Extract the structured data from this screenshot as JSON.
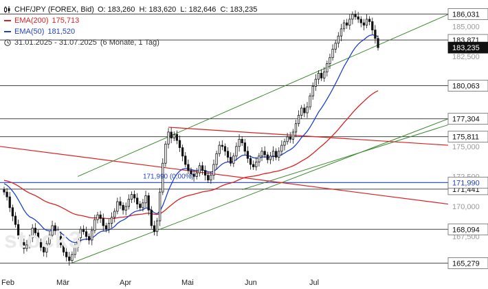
{
  "header": {
    "symbol": "CHF/JPY (FOREX, Bid)",
    "ohlc": "O: 183,260  H: 183,620  L: 182,646  C: 183,235",
    "ema200_label": "EMA(200)",
    "ema200_value": "175,713",
    "ema50_label": "EMA(50)",
    "ema50_value": "181,520",
    "period": "31.01.2025 - 31.07.2025",
    "period_detail": "(6 Monate, 1 Tag)"
  },
  "watermark": "stock3",
  "colors": {
    "ema200": "#dd1f1f",
    "ema50": "#1f3fcc",
    "trend": "#3a8a2e",
    "horizontal": "#444444",
    "blue_line": "#1f3fcc",
    "candle": "#111111",
    "price_tag": "#111111"
  },
  "chart_data": {
    "type": "candlestick",
    "x_labels": [
      "Feb",
      "Mär",
      "Apr",
      "Mai",
      "Jun",
      "Jul"
    ],
    "y_ticks": [
      "167,500",
      "170,000",
      "172,500",
      "175,000",
      "182,500",
      "185,000"
    ],
    "ylim": [
      164.5,
      187.2
    ],
    "horizontal_levels": [
      {
        "value": 186.031,
        "label": "186,031"
      },
      {
        "value": 183.871,
        "label": "183,871"
      },
      {
        "value": 180.063,
        "label": "180,063"
      },
      {
        "value": 177.304,
        "label": "177,304"
      },
      {
        "value": 175.811,
        "label": "175,811"
      },
      {
        "value": 171.441,
        "label": "171,441"
      },
      {
        "value": 168.094,
        "label": "168,094"
      },
      {
        "value": 165.279,
        "label": "165,279"
      }
    ],
    "blue_level": {
      "value": 171.99,
      "label": "171,990",
      "annotation": "171,990 (0,00%)"
    },
    "last_price": {
      "value": 183.235,
      "label": "183,235"
    },
    "candles_close": [
      171.2,
      170.8,
      169.9,
      169.2,
      168.5,
      167.6,
      167.0,
      166.5,
      166.8,
      167.4,
      168.2,
      167.8,
      167.0,
      166.6,
      166.2,
      166.9,
      167.6,
      168.4,
      168.0,
      167.5,
      166.8,
      166.2,
      165.8,
      165.5,
      166.0,
      166.6,
      167.4,
      168.1,
      167.9,
      167.5,
      167.2,
      168.0,
      168.9,
      169.3,
      169.0,
      168.4,
      168.1,
      168.6,
      169.1,
      169.6,
      170.4,
      170.1,
      169.7,
      170.0,
      170.6,
      171.0,
      170.7,
      170.2,
      169.9,
      170.3,
      170.9,
      169.7,
      168.4,
      167.9,
      168.8,
      171.2,
      173.6,
      175.2,
      176.2,
      175.7,
      176.0,
      175.5,
      174.9,
      174.2,
      173.5,
      173.0,
      172.7,
      172.5,
      172.8,
      173.4,
      173.0,
      172.6,
      172.2,
      172.6,
      173.5,
      174.4,
      175.1,
      175.0,
      174.6,
      174.1,
      173.6,
      174.2,
      175.0,
      175.6,
      175.3,
      174.6,
      174.0,
      173.5,
      173.3,
      173.7,
      174.2,
      174.6,
      174.3,
      173.9,
      174.2,
      174.6,
      174.1,
      174.6,
      175.1,
      175.4,
      175.8,
      175.6,
      176.2,
      176.9,
      177.6,
      178.2,
      177.8,
      178.3,
      179.2,
      180.0,
      180.6,
      181.1,
      180.7,
      181.2,
      181.9,
      182.4,
      183.1,
      183.6,
      184.2,
      184.8,
      185.3,
      185.1,
      185.6,
      186.0,
      185.8,
      185.6,
      185.3,
      185.1,
      185.6,
      185.4,
      184.7,
      184.0,
      183.235
    ]
  }
}
